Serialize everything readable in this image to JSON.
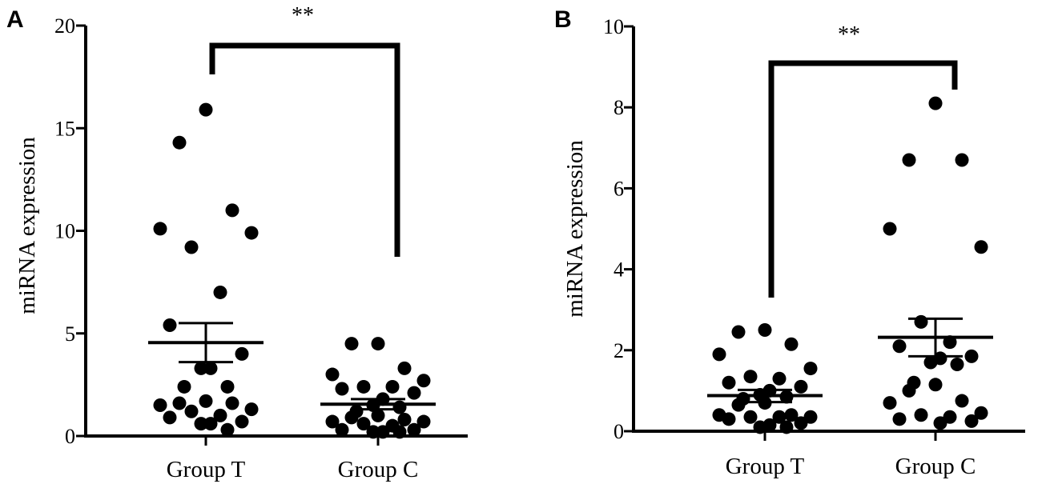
{
  "chart_data": [
    {
      "panel_label": "A",
      "type": "scatter",
      "ylabel": "miRNA expression",
      "xlabel": "",
      "ylim": [
        0,
        20
      ],
      "yticks": [
        0,
        5,
        10,
        15,
        20
      ],
      "categories": [
        "Group T",
        "Group C"
      ],
      "significance": "**",
      "series": [
        {
          "name": "Group T",
          "values": [
            15.9,
            14.3,
            11.0,
            10.1,
            9.9,
            9.2,
            7.0,
            5.4,
            4.0,
            3.3,
            3.3,
            2.4,
            2.4,
            1.7,
            1.6,
            1.6,
            1.5,
            1.3,
            1.2,
            1.0,
            0.9,
            0.7,
            0.6,
            0.6,
            0.3
          ],
          "mean": 4.55,
          "sem_low": 3.6,
          "sem_high": 5.5
        },
        {
          "name": "Group C",
          "values": [
            4.5,
            4.5,
            3.3,
            3.0,
            2.7,
            2.4,
            2.4,
            2.3,
            2.1,
            1.8,
            1.5,
            1.4,
            1.2,
            1.0,
            0.9,
            0.8,
            0.7,
            0.7,
            0.6,
            0.5,
            0.3,
            0.3,
            0.2,
            0.2,
            0.2
          ],
          "mean": 1.55,
          "sem_low": 1.3,
          "sem_high": 1.8
        }
      ]
    },
    {
      "panel_label": "B",
      "type": "scatter",
      "ylabel": "miRNA expression",
      "xlabel": "",
      "ylim": [
        0,
        10
      ],
      "yticks": [
        0,
        2,
        4,
        6,
        8,
        10
      ],
      "categories": [
        "Group T",
        "Group C"
      ],
      "significance": "**",
      "series": [
        {
          "name": "Group T",
          "values": [
            2.5,
            2.45,
            2.15,
            1.9,
            1.55,
            1.35,
            1.3,
            1.2,
            1.1,
            1.0,
            0.9,
            0.85,
            0.8,
            0.7,
            0.65,
            0.4,
            0.4,
            0.35,
            0.35,
            0.35,
            0.3,
            0.2,
            0.15,
            0.1,
            0.1
          ],
          "mean": 0.88,
          "sem_low": 0.72,
          "sem_high": 1.02
        },
        {
          "name": "Group C",
          "values": [
            8.1,
            6.7,
            6.7,
            5.0,
            4.55,
            2.7,
            2.2,
            2.1,
            1.85,
            1.8,
            1.7,
            1.65,
            1.2,
            1.15,
            1.0,
            0.75,
            0.7,
            0.45,
            0.4,
            0.35,
            0.3,
            0.25,
            0.2
          ],
          "mean": 2.32,
          "sem_low": 1.85,
          "sem_high": 2.78
        }
      ]
    }
  ]
}
